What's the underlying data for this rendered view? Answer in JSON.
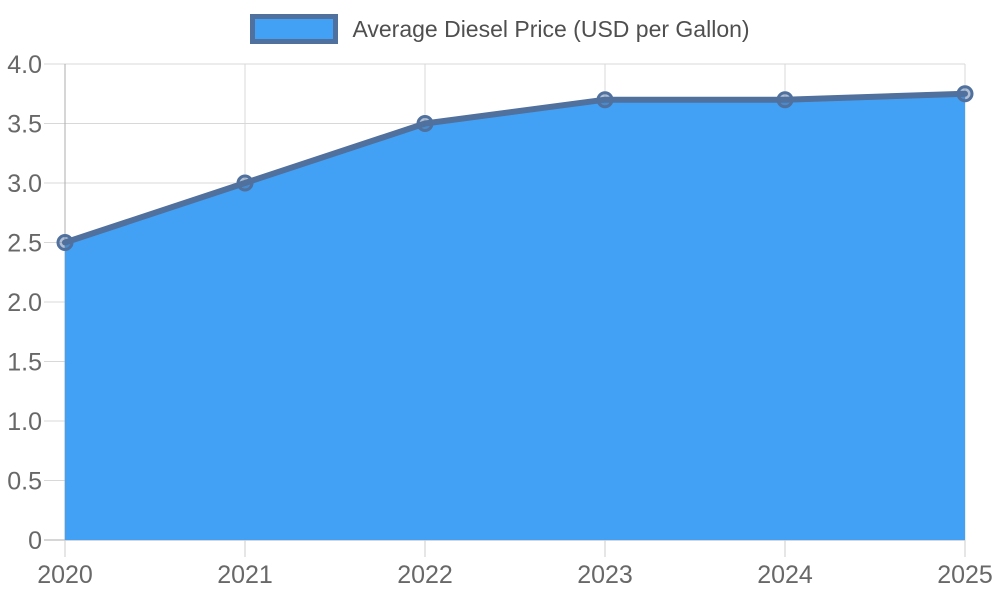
{
  "chart_data": {
    "type": "area",
    "x": [
      2020,
      2021,
      2022,
      2023,
      2024,
      2025
    ],
    "series": [
      {
        "name": "Average Diesel Price (USD per Gallon)",
        "values": [
          2.5,
          3.0,
          3.5,
          3.7,
          3.7,
          3.75
        ]
      }
    ],
    "title": "",
    "xlabel": "",
    "ylabel": "",
    "ylim": [
      0,
      4
    ],
    "ytick_step": 0.5,
    "ytick_labels": [
      "0",
      "0.5",
      "1.0",
      "1.5",
      "2.0",
      "2.5",
      "3.0",
      "3.5",
      "4.0"
    ],
    "grid": true,
    "legend_position": "top-center",
    "colors": {
      "area_fill": "#42a1f5",
      "line": "#50709d",
      "marker_fill_opacity": 0.45,
      "grid": "#d8d8d8",
      "axis": "#aeaeae",
      "tick": "#cccccc",
      "tick_label": "#686868",
      "legend_text": "#4f4f4f"
    }
  }
}
